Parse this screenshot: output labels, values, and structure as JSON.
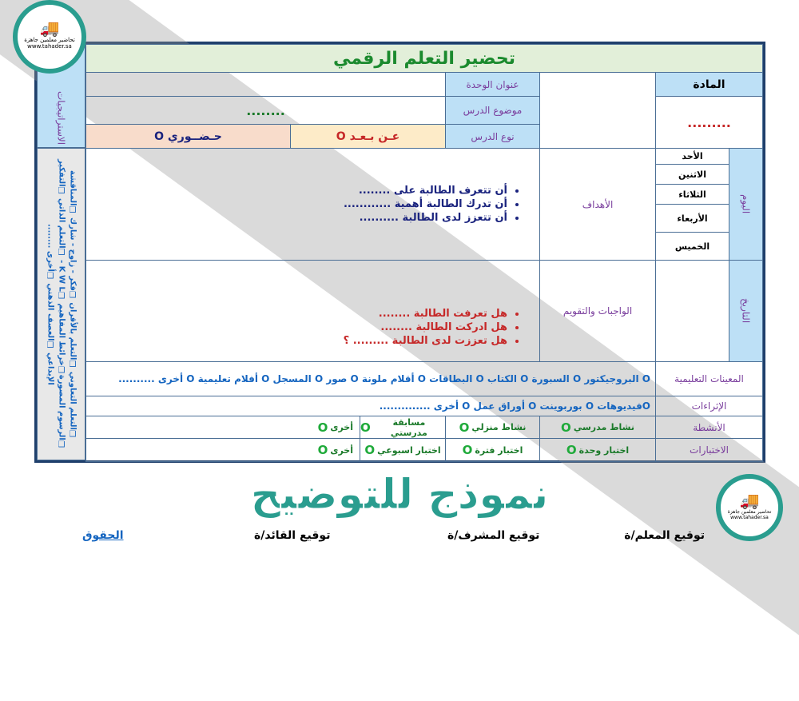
{
  "title": "تحضير التعلم الرقمي",
  "strategies_label": "الاستراتيجيات",
  "strategies": "❑التعلم التعاوني ❑التعلم بالأقران ❑فكر - زاوج - شارك ❑المناقشة ❑الرسوم المصورة❑خرائط المفاهيم ❑K W L - ❑التعلم الذاتي ❑التفكير الإبداعي ❑العصف الذهني ❑أخرى ........",
  "subject": {
    "label": "المادة",
    "value": "........."
  },
  "unit_title": {
    "label": "عنوان الوحدة",
    "value": ""
  },
  "lesson_topic": {
    "label": "موضوع الدرس",
    "value": "........"
  },
  "lesson_type": {
    "label": "نوع الدرس",
    "remote": "عـن بـعـد O",
    "inperson": "حـضــوري O"
  },
  "day_label": "اليوم",
  "days": [
    "الأحد",
    "الاثنين",
    "الثلاثاء",
    "الأربعاء",
    "الخميس"
  ],
  "date_label": "التاريخ",
  "objectives": {
    "label": "الأهداف",
    "items": [
      "أن تتعرف الطالبة على ........",
      "أن تدرك الطالبة أهمية ............",
      "أن تتعزز لدى الطالبة .........."
    ]
  },
  "homework": {
    "label": "الواجبات والتقويم",
    "items": [
      "هل تعرفت الطالبة ........",
      "هل ادركت الطالبة ........",
      "هل تعززت لدى الطالبة ......... ؟"
    ]
  },
  "aids": {
    "label": "المعينات التعليمية",
    "value": "O البروجيكتور O السبورة O الكتاب O البطاقات O أقلام ملونة O صور O المسجل O أفلام تعليمية O أخرى .........."
  },
  "enrichment": {
    "label": "الإثراءات",
    "value": "Oفيديوهات O بوربوينت O أوراق عمل O أخرى .............."
  },
  "activities": {
    "label": "الأنشطة",
    "items": [
      "نشاط مدرسي",
      "نشاط منزلي",
      "مسابقة مدرستي",
      "أخرى"
    ]
  },
  "tests": {
    "label": "الاختبارات",
    "items": [
      "اختبار وحدة",
      "اختبار فترة",
      "اختبار اسبوعي",
      "أخرى"
    ]
  },
  "circle_mark": "O",
  "signatures": {
    "teacher": "توقيع المعلم/ة",
    "supervisor": "توقيع المشرف/ة",
    "leader": "توقيع القائد/ة",
    "rights_link": "الحقوق"
  },
  "watermark": "نموذج للتوضيح",
  "logo": {
    "name": "تحاضير معلمين جاهزة",
    "url": "www.tahader.sa"
  },
  "colors": {
    "border": "#1f3f6b",
    "title_bg": "#e2efd9",
    "header_bg": "#bde0f6",
    "watermark": "#2a9d8f"
  }
}
